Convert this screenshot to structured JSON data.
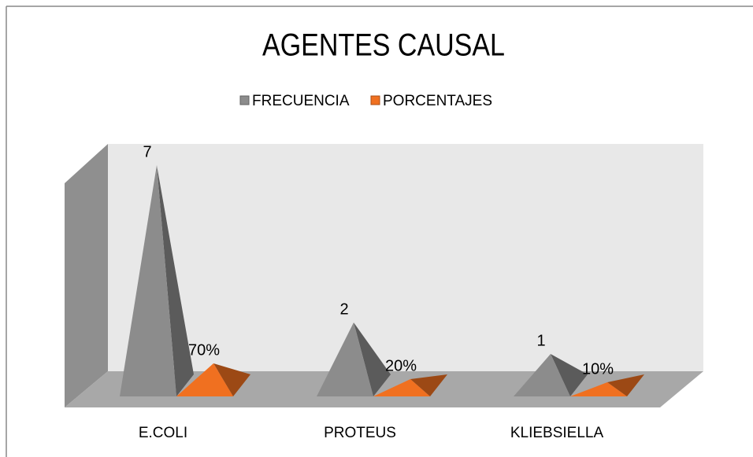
{
  "chart_data": {
    "type": "bar3d-pyramid",
    "title": "AGENTES CAUSAL",
    "categories": [
      "E.COLI",
      "PROTEUS",
      "KLIEBSIELLA"
    ],
    "series": [
      {
        "name": "FRECUENCIA",
        "color": "#8c8c8c",
        "values": [
          7,
          2,
          1
        ]
      },
      {
        "name": "PORCENTAJES",
        "color": "#f07020",
        "values": [
          0.7,
          0.2,
          0.1
        ],
        "value_labels": [
          "70%",
          "20%",
          "10%"
        ]
      }
    ],
    "ylim": [
      0,
      7
    ],
    "legend": "top"
  }
}
